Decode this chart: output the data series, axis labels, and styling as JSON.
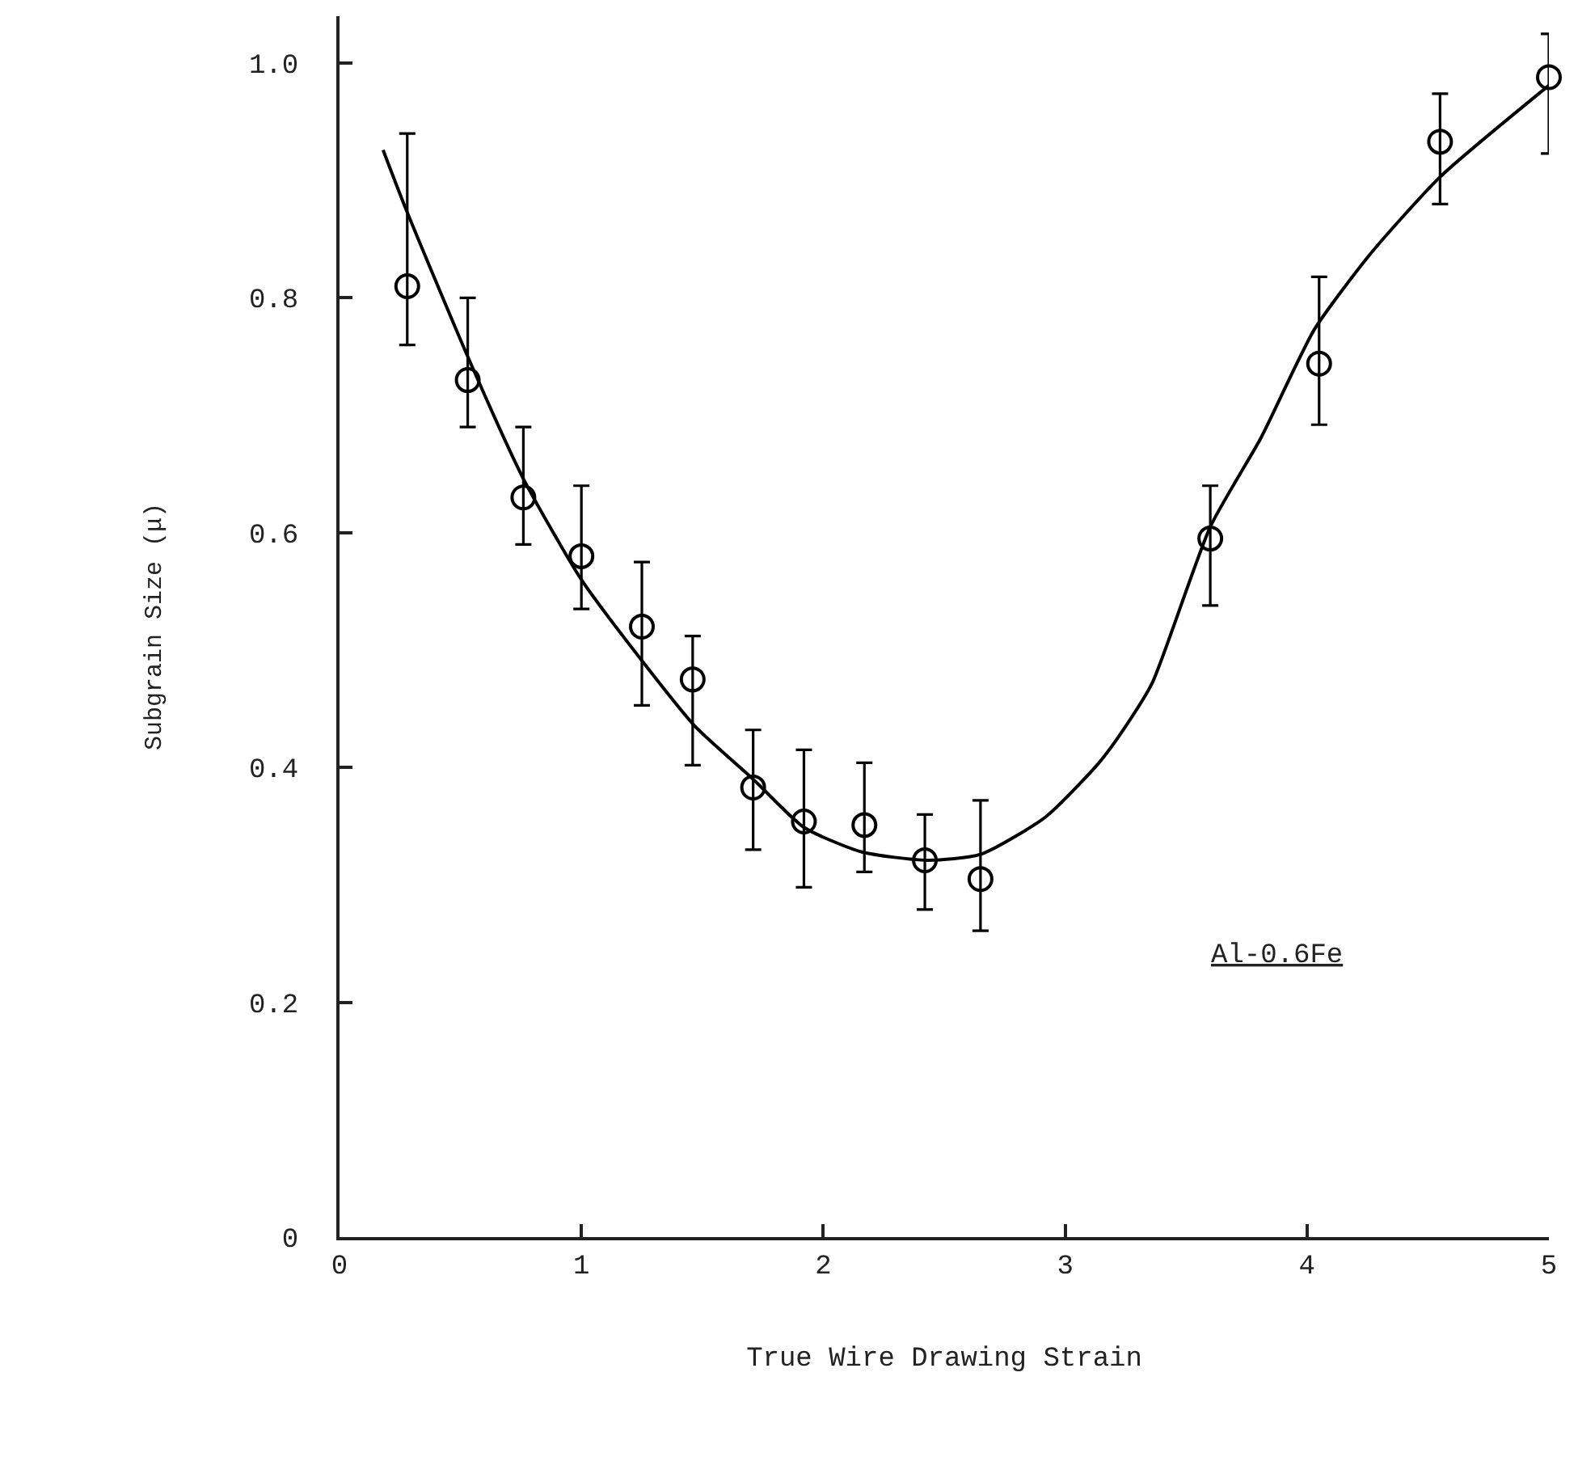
{
  "chart_data": {
    "type": "scatter",
    "xlabel": "True Wire Drawing Strain",
    "ylabel": "Subgrain Size (μ)",
    "annotations": [
      "Al-0.6Fe"
    ],
    "xlim": [
      0,
      5
    ],
    "xticks": [
      0,
      1,
      2,
      3,
      4,
      5
    ],
    "ylim": [
      0,
      1.04
    ],
    "yticks": [
      0,
      0.2,
      0.4,
      0.6,
      0.8,
      {
        "value": 1,
        "label": "1.0"
      }
    ],
    "grid": false,
    "series": [
      {
        "marker": "circle",
        "color": "#000000",
        "x": [
          0.28,
          0.53,
          0.76,
          1.0,
          1.25,
          1.46,
          1.71,
          1.92,
          2.17,
          2.42,
          2.65,
          3.6,
          4.05,
          4.55,
          5.0
        ],
        "values": [
          0.81,
          0.73,
          0.63,
          0.58,
          0.52,
          0.475,
          0.383,
          0.354,
          0.351,
          0.321,
          0.305,
          0.595,
          0.744,
          0.933,
          0.988
        ],
        "errors": [
          [
            0.76,
            0.94
          ],
          [
            0.69,
            0.8
          ],
          [
            0.59,
            0.69
          ],
          [
            0.535,
            0.64
          ],
          [
            0.453,
            0.575
          ],
          [
            0.402,
            0.512
          ],
          [
            0.33,
            0.432
          ],
          [
            0.298,
            0.415
          ],
          [
            0.311,
            0.404
          ],
          [
            0.279,
            0.36
          ],
          [
            0.261,
            0.372
          ],
          [
            0.538,
            0.64
          ],
          [
            0.692,
            0.818
          ],
          [
            0.88,
            0.974
          ],
          [
            0.923,
            1.025
          ]
        ]
      },
      {
        "type": "line",
        "color": "#000000",
        "line_style": "solid",
        "x": [
          0.18,
          0.27,
          0.53,
          0.76,
          1.0,
          1.25,
          1.47,
          1.71,
          1.92,
          2.16,
          2.43,
          2.65,
          2.92,
          3.14,
          3.25,
          3.36,
          3.6,
          3.81,
          4.03,
          4.26,
          4.55,
          5.0
        ],
        "values": [
          0.926,
          0.878,
          0.75,
          0.646,
          0.56,
          0.491,
          0.435,
          0.39,
          0.349,
          0.328,
          0.321,
          0.326,
          0.358,
          0.404,
          0.435,
          0.472,
          0.605,
          0.681,
          0.773,
          0.837,
          0.903,
          0.981
        ]
      }
    ]
  }
}
